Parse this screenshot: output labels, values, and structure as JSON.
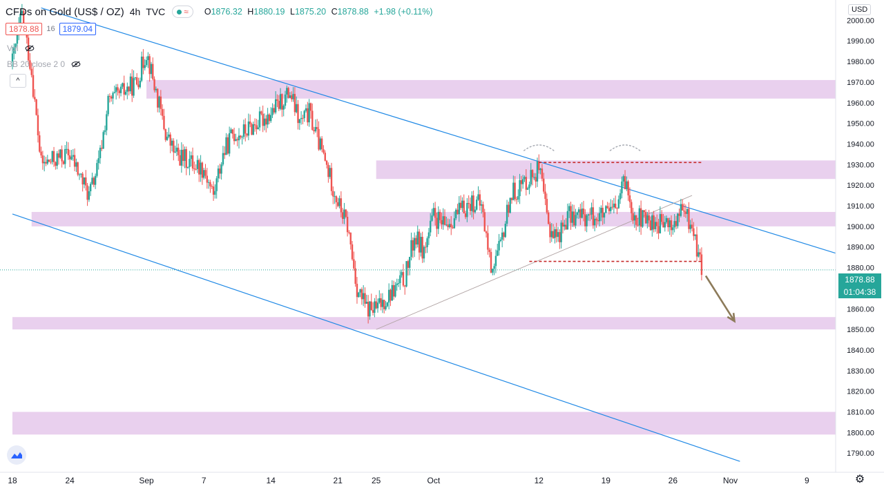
{
  "header": {
    "symbol": "CFDs on Gold (US$ / OZ)",
    "interval": "4h",
    "source": "TVC",
    "open_label": "O",
    "open": "1876.32",
    "high_label": "H",
    "high": "1880.19",
    "low_label": "L",
    "low": "1875.20",
    "close_label": "C",
    "close": "1878.88",
    "change": "+1.98 (+0.11%)",
    "bid": "1878.88",
    "spread": "16",
    "ask": "1879.04",
    "vol_label": "Vol",
    "bb_label": "BB 20 close 2 0",
    "currency": "USD"
  },
  "price_tag": {
    "price": "1878.88",
    "countdown": "01:04:38"
  },
  "colors": {
    "up": "#26a69a",
    "down": "#ef5350",
    "zone": "#e1bee7",
    "trendline": "#1e88e5",
    "dashed": "#c62828",
    "arrow": "#8d7b5a",
    "axis_text": "#131722"
  },
  "icons": [
    "eye-off-icon",
    "chevron-up-icon",
    "tradingview-logo-icon",
    "gear-icon"
  ],
  "chart_data": {
    "type": "candlestick",
    "title": "CFDs on Gold (US$ / OZ)",
    "xlabel": "",
    "ylabel": "",
    "ylim": [
      1785,
      2010
    ],
    "x_range": [
      "2020-08-18",
      "2020-11-12"
    ],
    "y_ticks": [
      1790,
      1800,
      1810,
      1820,
      1830,
      1840,
      1850,
      1860,
      1870,
      1880,
      1890,
      1900,
      1910,
      1920,
      1930,
      1940,
      1950,
      1960,
      1970,
      1980,
      1990,
      2000
    ],
    "x_ticks": [
      {
        "label": "18",
        "date": "2020-08-18"
      },
      {
        "label": "24",
        "date": "2020-08-24"
      },
      {
        "label": "Sep",
        "date": "2020-09-01"
      },
      {
        "label": "7",
        "date": "2020-09-07"
      },
      {
        "label": "14",
        "date": "2020-09-14"
      },
      {
        "label": "21",
        "date": "2020-09-21"
      },
      {
        "label": "25",
        "date": "2020-09-25"
      },
      {
        "label": "Oct",
        "date": "2020-10-01"
      },
      {
        "label": "12",
        "date": "2020-10-12"
      },
      {
        "label": "19",
        "date": "2020-10-19"
      },
      {
        "label": "26",
        "date": "2020-10-26"
      },
      {
        "label": "Nov",
        "date": "2020-11-01"
      },
      {
        "label": "9",
        "date": "2020-11-09"
      }
    ],
    "grid": false,
    "last_price": 1878.88,
    "zones": [
      {
        "from": "2020-09-01",
        "to": "2020-11-12",
        "low": 1962,
        "high": 1971
      },
      {
        "from": "2020-09-25",
        "to": "2020-11-12",
        "low": 1923,
        "high": 1932
      },
      {
        "from": "2020-08-20",
        "to": "2020-11-12",
        "low": 1900,
        "high": 1907
      },
      {
        "from": "2020-08-18",
        "to": "2020-11-12",
        "low": 1850,
        "high": 1856
      },
      {
        "from": "2020-08-18",
        "to": "2020-11-12",
        "low": 1799,
        "high": 1810
      }
    ],
    "trendlines": [
      {
        "style": "solid",
        "points": [
          [
            "2020-08-21",
            2006
          ],
          [
            "2020-11-12",
            1887
          ]
        ]
      },
      {
        "style": "solid",
        "points": [
          [
            "2020-08-18",
            1906
          ],
          [
            "2020-11-02",
            1786
          ]
        ]
      },
      {
        "style": "thin",
        "points": [
          [
            "2020-09-25",
            1850
          ],
          [
            "2020-10-28",
            1915
          ]
        ]
      }
    ],
    "horizontal_levels": [
      {
        "style": "dashed",
        "value": 1931,
        "from": "2020-10-12",
        "to": "2020-10-29"
      },
      {
        "style": "dashed",
        "value": 1883,
        "from": "2020-10-11",
        "to": "2020-10-29"
      }
    ],
    "arcs": [
      {
        "center_date": "2020-10-12",
        "value": 1939
      },
      {
        "center_date": "2020-10-21",
        "value": 1939
      }
    ],
    "arrow": {
      "from": [
        "2020-10-29",
        1876
      ],
      "to": [
        "2020-11-01",
        1856
      ]
    },
    "anchors": [
      {
        "date": "2020-08-18",
        "value": 1980
      },
      {
        "date": "2020-08-19",
        "value": 2003
      },
      {
        "date": "2020-08-20",
        "value": 1975
      },
      {
        "date": "2020-08-21",
        "value": 1930
      },
      {
        "date": "2020-08-24",
        "value": 1935
      },
      {
        "date": "2020-08-25",
        "value": 1925
      },
      {
        "date": "2020-08-26",
        "value": 1915
      },
      {
        "date": "2020-08-27",
        "value": 1930
      },
      {
        "date": "2020-08-28",
        "value": 1960
      },
      {
        "date": "2020-08-31",
        "value": 1970
      },
      {
        "date": "2020-09-01",
        "value": 1985
      },
      {
        "date": "2020-09-02",
        "value": 1965
      },
      {
        "date": "2020-09-03",
        "value": 1945
      },
      {
        "date": "2020-09-04",
        "value": 1935
      },
      {
        "date": "2020-09-07",
        "value": 1928
      },
      {
        "date": "2020-09-08",
        "value": 1915
      },
      {
        "date": "2020-09-09",
        "value": 1935
      },
      {
        "date": "2020-09-10",
        "value": 1945
      },
      {
        "date": "2020-09-11",
        "value": 1945
      },
      {
        "date": "2020-09-14",
        "value": 1955
      },
      {
        "date": "2020-09-15",
        "value": 1960
      },
      {
        "date": "2020-09-16",
        "value": 1965
      },
      {
        "date": "2020-09-17",
        "value": 1950
      },
      {
        "date": "2020-09-18",
        "value": 1955
      },
      {
        "date": "2020-09-21",
        "value": 1912
      },
      {
        "date": "2020-09-22",
        "value": 1900
      },
      {
        "date": "2020-09-23",
        "value": 1870
      },
      {
        "date": "2020-09-24",
        "value": 1860
      },
      {
        "date": "2020-09-25",
        "value": 1860
      },
      {
        "date": "2020-09-28",
        "value": 1875
      },
      {
        "date": "2020-09-29",
        "value": 1895
      },
      {
        "date": "2020-09-30",
        "value": 1888
      },
      {
        "date": "2020-10-01",
        "value": 1905
      },
      {
        "date": "2020-10-02",
        "value": 1900
      },
      {
        "date": "2020-10-05",
        "value": 1912
      },
      {
        "date": "2020-10-06",
        "value": 1910
      },
      {
        "date": "2020-10-07",
        "value": 1880
      },
      {
        "date": "2020-10-08",
        "value": 1890
      },
      {
        "date": "2020-10-09",
        "value": 1915
      },
      {
        "date": "2020-10-12",
        "value": 1928
      },
      {
        "date": "2020-10-13",
        "value": 1900
      },
      {
        "date": "2020-10-14",
        "value": 1895
      },
      {
        "date": "2020-10-15",
        "value": 1905
      },
      {
        "date": "2020-10-16",
        "value": 1905
      },
      {
        "date": "2020-10-19",
        "value": 1905
      },
      {
        "date": "2020-10-20",
        "value": 1908
      },
      {
        "date": "2020-10-21",
        "value": 1922
      },
      {
        "date": "2020-10-22",
        "value": 1905
      },
      {
        "date": "2020-10-23",
        "value": 1903
      },
      {
        "date": "2020-10-26",
        "value": 1900
      },
      {
        "date": "2020-10-27",
        "value": 1908
      },
      {
        "date": "2020-10-28",
        "value": 1900
      },
      {
        "date": "2020-10-29",
        "value": 1878.88
      }
    ]
  }
}
